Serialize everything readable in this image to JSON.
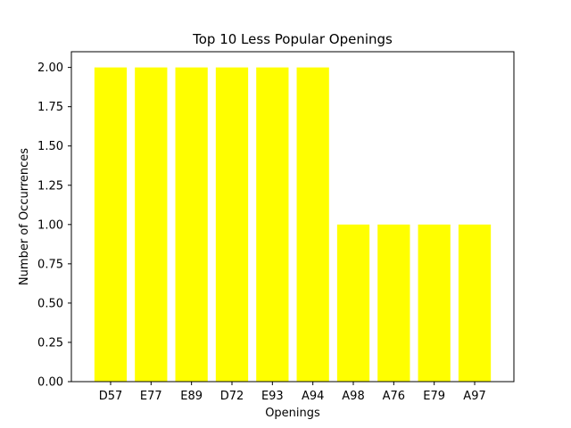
{
  "chart_data": {
    "type": "bar",
    "title": "Top 10 Less Popular Openings",
    "xlabel": "Openings",
    "ylabel": "Number of Occurrences",
    "categories": [
      "D57",
      "E77",
      "E89",
      "D72",
      "E93",
      "A94",
      "A98",
      "A76",
      "E79",
      "A97"
    ],
    "values": [
      2,
      2,
      2,
      2,
      2,
      2,
      1,
      1,
      1,
      1
    ],
    "ylim": [
      0,
      2.1
    ],
    "yticks": [
      "0.00",
      "0.25",
      "0.50",
      "0.75",
      "1.00",
      "1.25",
      "1.50",
      "1.75",
      "2.00"
    ],
    "bar_color": "#ffff00",
    "grid": false,
    "legend": false
  }
}
